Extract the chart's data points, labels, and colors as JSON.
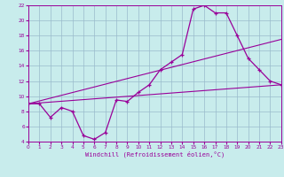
{
  "xlabel": "Windchill (Refroidissement éolien,°C)",
  "xlim": [
    0,
    23
  ],
  "ylim": [
    4,
    22
  ],
  "xticks": [
    0,
    1,
    2,
    3,
    4,
    5,
    6,
    7,
    8,
    9,
    10,
    11,
    12,
    13,
    14,
    15,
    16,
    17,
    18,
    19,
    20,
    21,
    22,
    23
  ],
  "yticks": [
    4,
    6,
    8,
    10,
    12,
    14,
    16,
    18,
    20,
    22
  ],
  "bg_color": "#c8ecec",
  "line_color": "#990099",
  "grid_color": "#99bbcc",
  "line1_x": [
    0,
    1,
    2,
    3,
    4,
    5,
    6,
    7,
    8,
    9,
    10,
    11,
    12,
    13,
    14,
    15,
    16,
    17,
    18,
    19,
    20,
    21,
    22,
    23
  ],
  "line1_y": [
    9.0,
    9.0,
    7.2,
    8.5,
    8.0,
    4.8,
    4.3,
    5.2,
    9.5,
    9.3,
    10.5,
    11.5,
    13.5,
    14.5,
    15.5,
    21.5,
    22.0,
    21.0,
    21.0,
    18.0,
    15.0,
    13.5,
    12.0,
    11.5
  ],
  "line2_x": [
    0,
    23
  ],
  "line2_y": [
    9.0,
    17.5
  ],
  "line3_x": [
    0,
    23
  ],
  "line3_y": [
    9.0,
    11.5
  ],
  "marker": "+"
}
